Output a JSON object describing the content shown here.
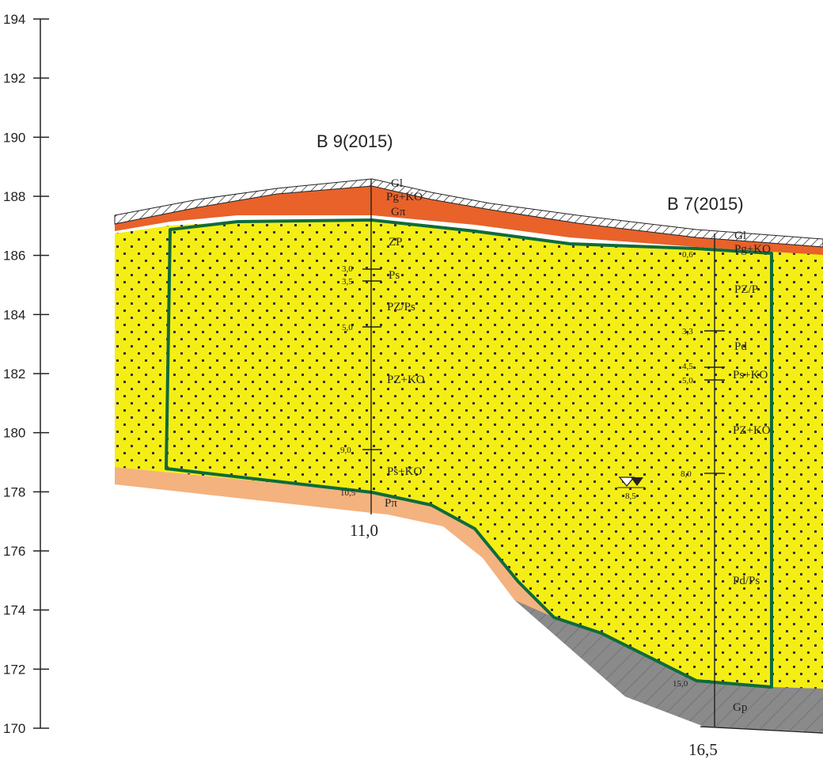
{
  "axis": {
    "elevations": [
      "194",
      "192",
      "190",
      "188",
      "186",
      "184",
      "182",
      "180",
      "178",
      "176",
      "174",
      "172",
      "170"
    ]
  },
  "boreholes": [
    {
      "title": "B 9(2015)",
      "total_depth": "11,0",
      "layer_labels": [
        "Gl",
        "Pg+KO",
        "Gπ",
        "ZP",
        "Ps",
        "PZ/Ps",
        "PZ+KO",
        "Ps+KO",
        "Pπ"
      ],
      "depth_marks": [
        "3,0",
        "3,5",
        "5,0",
        "9,0",
        "10,5"
      ]
    },
    {
      "title": "B 7(2015)",
      "total_depth": "16,5",
      "layer_labels": [
        "Gl",
        "Pg+KO",
        "PZ/P",
        "Pd",
        "Ps+KO",
        "PZ+KO",
        "Pd/Ps",
        "Gp"
      ],
      "depth_marks": [
        "0,6",
        "3,3",
        "4,5",
        "5,0",
        "8,0",
        "15,0"
      ]
    }
  ],
  "groundwater": {
    "depth": "8,5"
  },
  "colors": {
    "sand": "#f5ee14",
    "sand_dots": "#333333",
    "topsoil": "#e8622a",
    "fill_crust": "#ffffff",
    "loam": "#f4b27e",
    "gravel_clay": "#8a8a8a",
    "outline": "#0f6b3a"
  }
}
